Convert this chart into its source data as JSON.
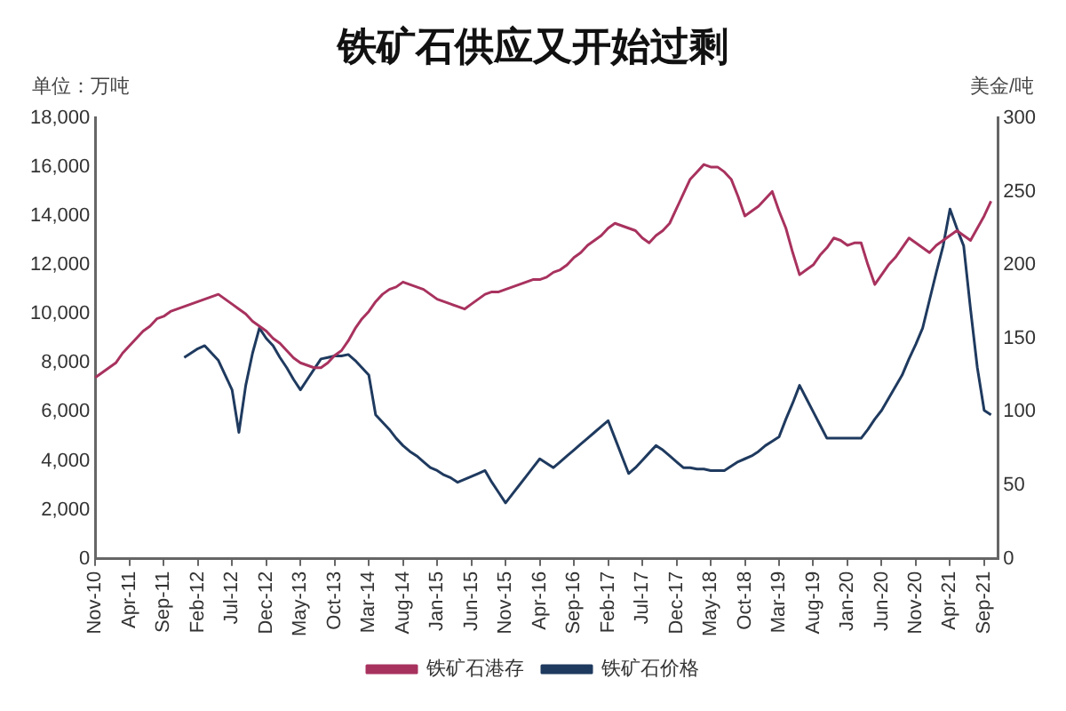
{
  "chart_data": {
    "type": "line",
    "title": "铁矿石供应又开始过剩",
    "ylabel": "单位：万吨",
    "y2label": "美金/吨",
    "categories": [
      "Nov-10",
      null,
      null,
      null,
      null,
      "Apr-11",
      null,
      null,
      null,
      null,
      "Sep-11",
      null,
      null,
      null,
      null,
      "Feb-12",
      null,
      null,
      null,
      null,
      "Jul-12",
      null,
      null,
      null,
      null,
      "Dec-12",
      null,
      null,
      null,
      null,
      "May-13",
      null,
      null,
      null,
      null,
      "Oct-13",
      null,
      null,
      null,
      null,
      "Mar-14",
      null,
      null,
      null,
      null,
      "Aug-14",
      null,
      null,
      null,
      null,
      "Jan-15",
      null,
      null,
      null,
      null,
      "Jun-15",
      null,
      null,
      null,
      null,
      "Nov-15",
      null,
      null,
      null,
      null,
      "Apr-16",
      null,
      null,
      null,
      null,
      "Sep-16",
      null,
      null,
      null,
      null,
      "Feb-17",
      null,
      null,
      null,
      null,
      "Jul-17",
      null,
      null,
      null,
      null,
      "Dec-17",
      null,
      null,
      null,
      null,
      "May-18",
      null,
      null,
      null,
      null,
      "Oct-18",
      null,
      null,
      null,
      null,
      "Mar-19",
      null,
      null,
      null,
      null,
      "Aug-19",
      null,
      null,
      null,
      null,
      "Jan-20",
      null,
      null,
      null,
      null,
      "Jun-20",
      null,
      null,
      null,
      null,
      "Nov-20",
      null,
      null,
      null,
      null,
      "Apr-21",
      null,
      null,
      null,
      null,
      "Sep-21",
      null,
      null
    ],
    "series": [
      {
        "name": "铁矿石港存",
        "color": "#a8325e",
        "values": [
          7400,
          7600,
          7800,
          8000,
          8400,
          8700,
          9000,
          9300,
          9500,
          9800,
          9900,
          10100,
          10200,
          10300,
          10400,
          10500,
          10600,
          10700,
          10800,
          10600,
          10400,
          10200,
          10000,
          9700,
          9500,
          9300,
          9000,
          8800,
          8500,
          8200,
          8000,
          7900,
          7800,
          7800,
          8000,
          8300,
          8500,
          8900,
          9400,
          9800,
          10100,
          10500,
          10800,
          11000,
          11100,
          11300,
          11200,
          11100,
          11000,
          10800,
          10600,
          10500,
          10400,
          10300,
          10200,
          10400,
          10600,
          10800,
          10900,
          10900,
          11000,
          11100,
          11200,
          11300,
          11400,
          11400,
          11500,
          11700,
          11800,
          12000,
          12300,
          12500,
          12800,
          13000,
          13200,
          13500,
          13700,
          13600,
          13500,
          13400,
          13100,
          12900,
          13200,
          13400,
          13700,
          14300,
          14900,
          15500,
          15800,
          16100,
          16000,
          16000,
          15800,
          15500,
          14800,
          14000,
          14200,
          14400,
          14700,
          15000,
          14200,
          13500,
          12500,
          11600,
          11800,
          12000,
          12400,
          12700,
          13100,
          13000,
          12800,
          12900,
          12900,
          12000,
          11200,
          11600,
          12000,
          12300,
          12700,
          13100,
          12900,
          12700,
          12500,
          12800,
          13000,
          13200,
          13400,
          13200,
          13000,
          13500,
          14000,
          14600,
          null
        ]
      },
      {
        "name": "铁矿石价格",
        "color": "#1f3a5f",
        "axis": "y2",
        "values": [
          null,
          null,
          null,
          null,
          null,
          null,
          null,
          null,
          null,
          null,
          null,
          null,
          null,
          137,
          140,
          143,
          145,
          140,
          135,
          125,
          115,
          86,
          118,
          140,
          157,
          150,
          145,
          137,
          130,
          122,
          115,
          122,
          129,
          136,
          137,
          138,
          138,
          139,
          135,
          130,
          125,
          98,
          93,
          88,
          82,
          77,
          73,
          70,
          66,
          62,
          60,
          57,
          55,
          52,
          54,
          56,
          58,
          60,
          52,
          45,
          38,
          44,
          50,
          56,
          62,
          68,
          65,
          62,
          66,
          70,
          74,
          78,
          82,
          86,
          90,
          94,
          82,
          70,
          58,
          62,
          67,
          72,
          77,
          74,
          70,
          66,
          62,
          62,
          61,
          61,
          60,
          60,
          60,
          63,
          66,
          68,
          70,
          73,
          77,
          80,
          83,
          95,
          106,
          118,
          109,
          100,
          91,
          82,
          82,
          82,
          82,
          82,
          82,
          88,
          95,
          101,
          109,
          117,
          125,
          136,
          146,
          157,
          176,
          195,
          213,
          238,
          225,
          213,
          170,
          130,
          101,
          98,
          null
        ]
      }
    ],
    "ylim": [
      0,
      18000
    ],
    "yticks": [
      0,
      {
        "value": 2000,
        "label": "2,000"
      },
      {
        "value": 4000,
        "label": "4,000"
      },
      {
        "value": 6000,
        "label": "6,000"
      },
      {
        "value": 8000,
        "label": "8,000"
      },
      {
        "value": 10000,
        "label": "10,000"
      },
      {
        "value": 12000,
        "label": "12,000"
      },
      {
        "value": 14000,
        "label": "14,000"
      },
      {
        "value": 16000,
        "label": "16,000"
      },
      {
        "value": 18000,
        "label": "18,000"
      }
    ],
    "y2lim": [
      0,
      300
    ],
    "y2ticks": [
      0,
      50,
      100,
      150,
      200,
      250,
      300
    ],
    "grid": false,
    "legend": "bottom",
    "marker": "none",
    "line_style": "solid"
  }
}
